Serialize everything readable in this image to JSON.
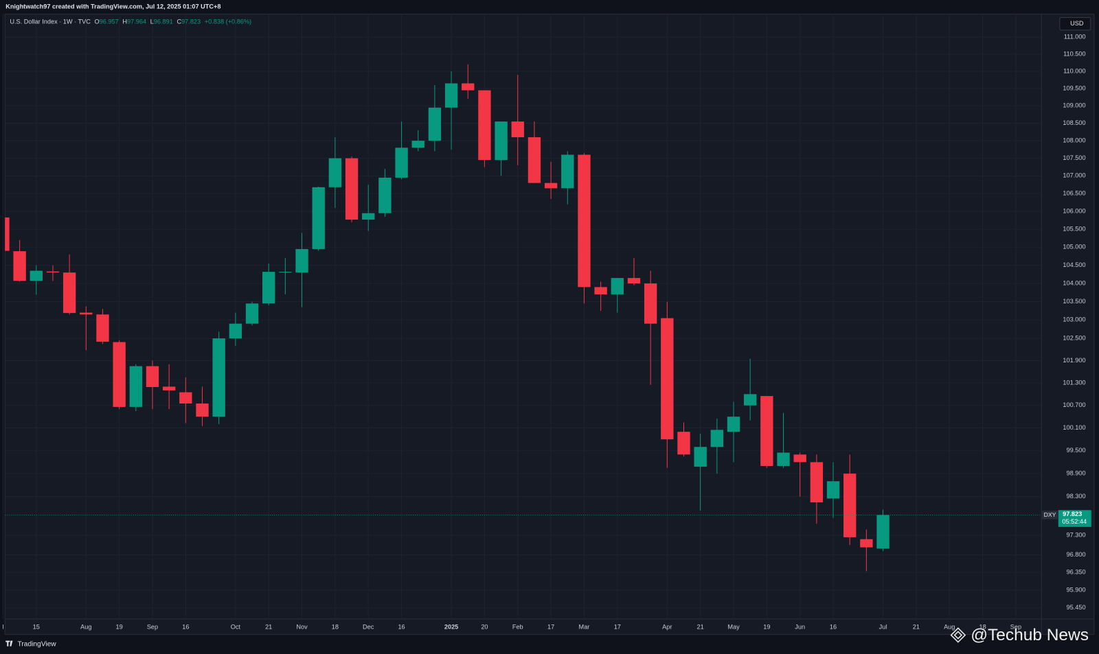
{
  "top_bar": {
    "text": "Knightwatch97 created with TradingView.com, Jul 12, 2025 01:07 UTC+8"
  },
  "footer": {
    "logo": "TradingView",
    "watermark": "@Techub News"
  },
  "chart_data": {
    "type": "candlestick",
    "title": "U.S. Dollar Index · 1W · TVC",
    "ohlc_labels": [
      "O",
      "H",
      "L",
      "C"
    ],
    "change_label": "+0.838 (+0.86%)",
    "currency": "USD",
    "symbol": "DXY",
    "countdown": "05:52:44",
    "log_scale": true,
    "grid": true,
    "up_color": "#089981",
    "down_color": "#f23645",
    "categories": [
      "l",
      null,
      "15",
      null,
      null,
      "Aug",
      null,
      "19",
      null,
      "Sep",
      null,
      "16",
      null,
      null,
      "Oct",
      null,
      "21",
      null,
      "Nov",
      null,
      "18",
      null,
      "Dec",
      null,
      "16",
      null,
      null,
      "2025",
      null,
      "20",
      null,
      "Feb",
      null,
      "17",
      null,
      "Mar",
      null,
      "17",
      null,
      null,
      "Apr",
      null,
      "21",
      null,
      "May",
      null,
      "19",
      null,
      "Jun",
      null,
      "16",
      null,
      null,
      "Jul",
      null,
      "21",
      null,
      "Aug",
      null,
      "18",
      null,
      "Sep"
    ],
    "open": [
      105.83,
      104.89,
      104.07,
      104.33,
      104.3,
      103.2,
      103.15,
      102.4,
      100.66,
      101.75,
      101.2,
      101.05,
      100.75,
      100.4,
      102.5,
      102.9,
      103.45,
      104.3,
      104.3,
      104.95,
      106.68,
      107.5,
      105.77,
      105.95,
      106.95,
      107.8,
      108,
      108.95,
      109.65,
      109.45,
      107.45,
      108.55,
      108.1,
      106.8,
      106.65,
      107.6,
      103.9,
      103.7,
      104.15,
      104.0,
      103.05,
      100.0,
      99.08,
      99.6,
      100.0,
      100.7,
      100.95,
      99.1,
      99.4,
      99.2,
      98.25,
      98.9,
      97.2,
      96.957,
      null,
      null,
      null,
      null,
      null,
      null,
      null,
      null
    ],
    "high": [
      105.83,
      105.2,
      104.5,
      104.5,
      104.8,
      103.37,
      103.3,
      102.45,
      101.8,
      101.9,
      101.8,
      101.45,
      101.2,
      102.68,
      103.2,
      103.5,
      104.55,
      104.7,
      105.4,
      106.7,
      108.1,
      107.55,
      106.75,
      107.2,
      108.55,
      108.3,
      109.6,
      110.0,
      110.2,
      109.45,
      108.55,
      109.9,
      108.55,
      107.4,
      107.7,
      107.65,
      104.05,
      104.15,
      104.7,
      104.35,
      103.5,
      100.25,
      99.95,
      100.35,
      100.8,
      101.95,
      100.95,
      100.5,
      99.45,
      99.4,
      99.2,
      99.4,
      97.45,
      97.964,
      null,
      null,
      null,
      null,
      null,
      null,
      null,
      null
    ],
    "low": [
      104.9,
      104.05,
      103.69,
      104.07,
      103.15,
      102.18,
      102.35,
      100.6,
      100.55,
      100.6,
      100.6,
      100.23,
      100.15,
      100.2,
      102.3,
      102.85,
      103.4,
      103.7,
      103.35,
      104.9,
      106.1,
      105.7,
      105.45,
      105.85,
      106.9,
      107.7,
      107.7,
      107.75,
      109.2,
      107.25,
      107.0,
      107.3,
      106.8,
      106.35,
      106.2,
      103.45,
      103.25,
      103.2,
      103.95,
      101.25,
      99.05,
      99.35,
      97.94,
      98.9,
      99.2,
      100.3,
      99.05,
      99.05,
      98.3,
      97.6,
      97.75,
      97.05,
      96.38,
      96.891,
      null,
      null,
      null,
      null,
      null,
      null,
      null,
      null
    ],
    "close": [
      104.9,
      104.07,
      104.35,
      104.3,
      103.19,
      103.15,
      102.41,
      100.66,
      101.75,
      101.19,
      101.1,
      100.75,
      100.4,
      102.5,
      102.9,
      103.45,
      104.32,
      104.32,
      104.95,
      106.68,
      107.5,
      105.77,
      105.95,
      106.95,
      107.8,
      108.0,
      108.95,
      109.65,
      109.45,
      107.45,
      108.55,
      108.1,
      106.8,
      106.65,
      107.6,
      103.9,
      103.7,
      104.15,
      104.0,
      102.9,
      99.8,
      99.4,
      99.6,
      100.05,
      100.4,
      101.0,
      99.1,
      99.45,
      99.2,
      98.15,
      98.7,
      97.25,
      96.99,
      97.823,
      null,
      null,
      null,
      null,
      null,
      null,
      null,
      null
    ],
    "ylim": [
      95.17,
      111.68
    ],
    "yticks": [
      {
        "value": 111,
        "label": "111.000"
      },
      {
        "value": 110.5,
        "label": "110.500"
      },
      {
        "value": 110,
        "label": "110.000"
      },
      {
        "value": 109.5,
        "label": "109.500"
      },
      {
        "value": 109,
        "label": "109.000"
      },
      {
        "value": 108.5,
        "label": "108.500"
      },
      {
        "value": 108,
        "label": "108.000"
      },
      {
        "value": 107.5,
        "label": "107.500"
      },
      {
        "value": 107,
        "label": "107.000"
      },
      {
        "value": 106.5,
        "label": "106.500"
      },
      {
        "value": 106,
        "label": "106.000"
      },
      {
        "value": 105.5,
        "label": "105.500"
      },
      {
        "value": 105,
        "label": "105.000"
      },
      {
        "value": 104.5,
        "label": "104.500"
      },
      {
        "value": 104,
        "label": "104.000"
      },
      {
        "value": 103.5,
        "label": "103.500"
      },
      {
        "value": 103,
        "label": "103.000"
      },
      {
        "value": 102.5,
        "label": "102.500"
      },
      {
        "value": 101.9,
        "label": "101.900"
      },
      {
        "value": 101.3,
        "label": "101.300"
      },
      {
        "value": 100.7,
        "label": "100.700"
      },
      {
        "value": 100.1,
        "label": "100.100"
      },
      {
        "value": 99.5,
        "label": "99.500"
      },
      {
        "value": 98.9,
        "label": "98.900"
      },
      {
        "value": 98.3,
        "label": "98.300"
      },
      {
        "value": 97.3,
        "label": "97.300"
      },
      {
        "value": 96.8,
        "label": "96.800"
      },
      {
        "value": 96.35,
        "label": "96.350"
      },
      {
        "value": 95.9,
        "label": "95.900"
      },
      {
        "value": 95.45,
        "label": "95.450"
      }
    ]
  }
}
